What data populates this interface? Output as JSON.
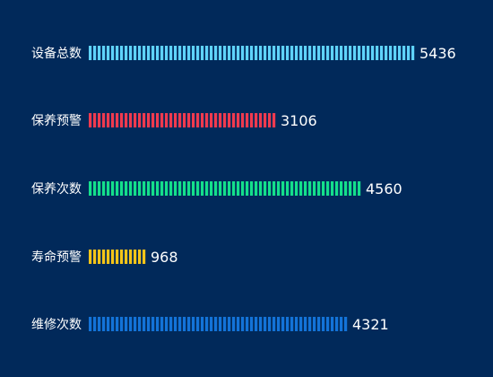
{
  "chart_data": {
    "type": "bar",
    "orientation": "horizontal",
    "categories": [
      "设备总数",
      "保养预警",
      "保养次数",
      "寿命预警",
      "维修次数"
    ],
    "values": [
      5436,
      3106,
      4560,
      968,
      4321
    ],
    "colors": [
      "#5fd3fb",
      "#f03a4f",
      "#14df8b",
      "#f5c518",
      "#1373d8"
    ],
    "bar_style": "segmented",
    "grid": false,
    "legend": "none"
  }
}
